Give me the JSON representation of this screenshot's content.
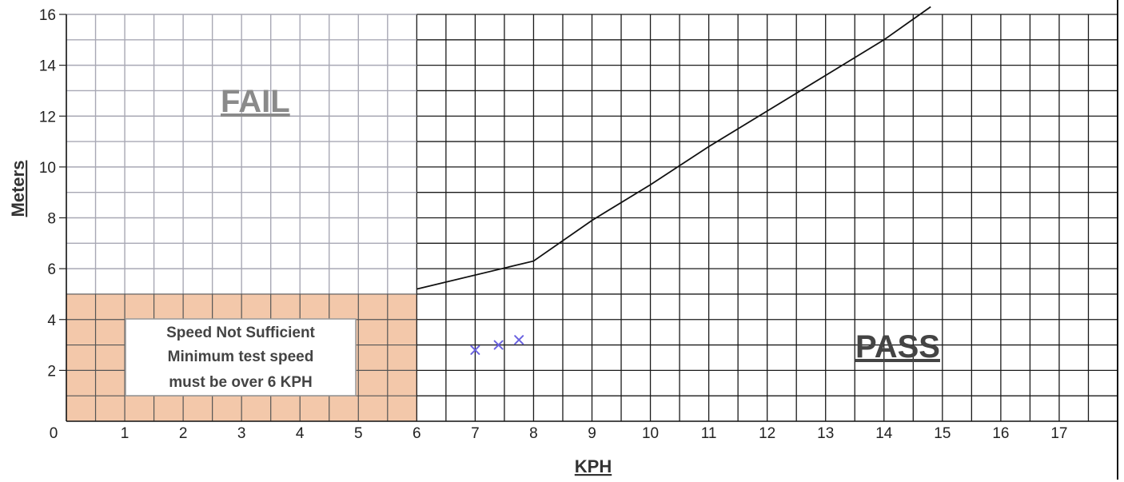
{
  "chart_data": {
    "type": "line",
    "xlabel": "KPH",
    "ylabel": "Meters",
    "xlim": [
      0,
      18
    ],
    "ylim": [
      0,
      16
    ],
    "x_ticks": [
      "0",
      "1",
      "2",
      "3",
      "4",
      "5",
      "6",
      "7",
      "8",
      "9",
      "10",
      "11",
      "12",
      "13",
      "14",
      "15",
      "16",
      "17"
    ],
    "y_ticks": [
      "2",
      "4",
      "6",
      "8",
      "10",
      "12",
      "14",
      "16"
    ],
    "grid": true,
    "series": [
      {
        "x": [
          6,
          8,
          9,
          10,
          11,
          12,
          13,
          14,
          14.8
        ],
        "y": [
          5.2,
          6.3,
          7.9,
          9.3,
          10.8,
          12.2,
          13.6,
          15.0,
          16.3
        ]
      }
    ],
    "markers": {
      "symbol": "x",
      "points": [
        {
          "x": 7.0,
          "y": 2.8
        },
        {
          "x": 7.4,
          "y": 3.0
        },
        {
          "x": 7.75,
          "y": 3.2
        }
      ],
      "color": "#6a62e0"
    },
    "zones": {
      "fail_label": "FAIL",
      "pass_label": "PASS",
      "insufficient_region": {
        "x": [
          0,
          6
        ],
        "y": [
          0,
          5
        ]
      },
      "insufficient_color": "#f3c8aa",
      "insufficient_text": [
        "Speed Not Sufficient",
        "Minimum test speed",
        "must be over 6 KPH"
      ]
    }
  }
}
